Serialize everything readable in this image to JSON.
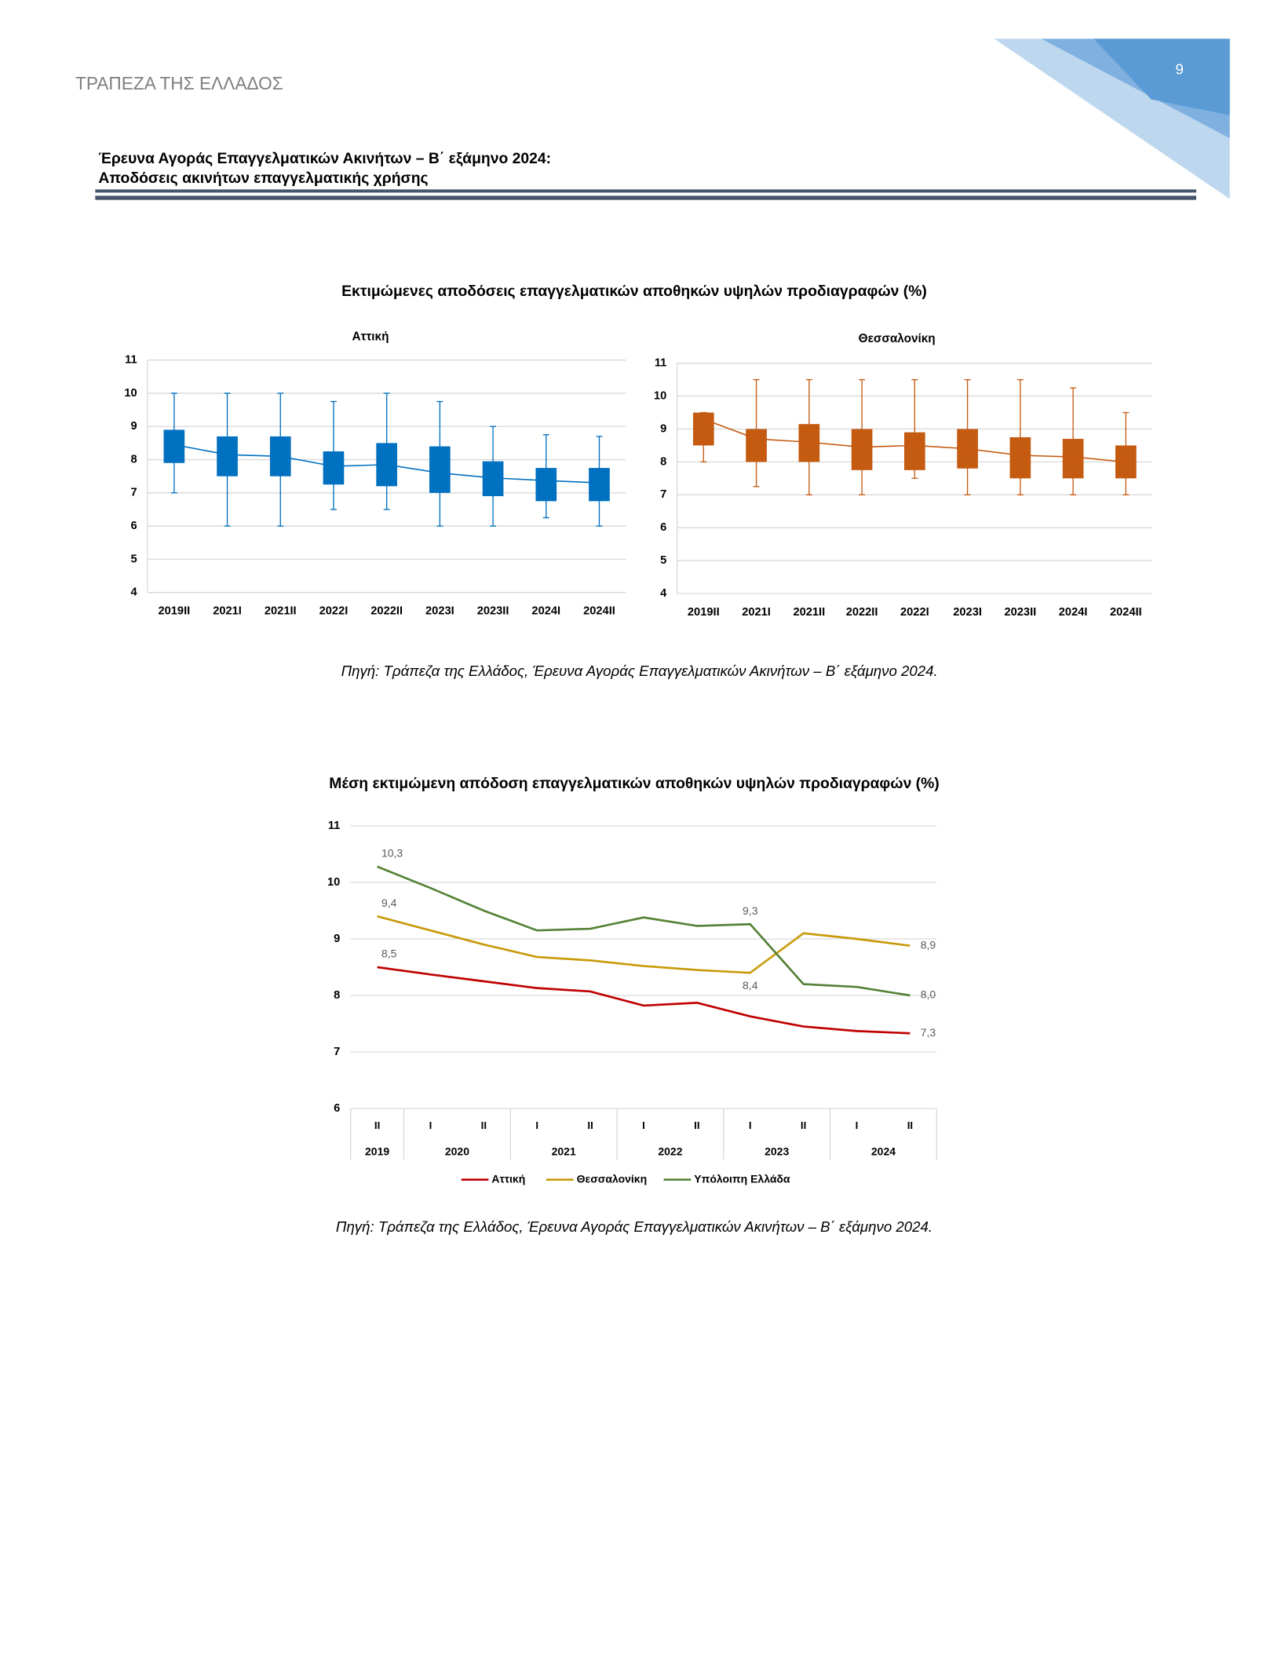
{
  "header": {
    "org": "ΤΡΑΠΕΖΑ ΤΗΣ ΕΛΛΑΔΟΣ",
    "page": "9",
    "title_line1": "Έρευνα Αγοράς Επαγγελματικών Ακινήτων – Β΄ εξάμηνο 2024:",
    "title_line2": "Αποδόσεις ακινήτων επαγγελματικής χρήσης"
  },
  "figure1": {
    "title": "Εκτιμώμενες αποδόσεις επαγγελματικών αποθηκών υψηλών προδιαγραφών (%)",
    "source": "Πηγή: Τράπεζα της Ελλάδος, Έρευνα Αγοράς Επαγγελματικών Ακινήτων – Β΄ εξάμηνο 2024."
  },
  "figure2": {
    "title": "Μέση εκτιμώμενη απόδοση επαγγελματικών αποθηκών υψηλών προδιαγραφών (%)",
    "source": "Πηγή: Τράπεζα της Ελλάδος, Έρευνα Αγοράς Επαγγελματικών Ακινήτων – Β΄ εξάμηνο 2024."
  },
  "chart_data": [
    {
      "type": "box",
      "title": "Αττική",
      "color": "#0070c0",
      "categories": [
        "2019II",
        "2021I",
        "2021II",
        "2022I",
        "2022II",
        "2023I",
        "2023II",
        "2024I",
        "2024II"
      ],
      "min": [
        7,
        6,
        6,
        6.5,
        6.5,
        6,
        6,
        6.25,
        6
      ],
      "q1": [
        7.9,
        7.5,
        7.5,
        7.25,
        7.2,
        7.0,
        6.9,
        6.75,
        6.75
      ],
      "q3": [
        8.9,
        8.7,
        8.7,
        8.25,
        8.5,
        8.4,
        7.95,
        7.75,
        7.75
      ],
      "max": [
        10,
        10,
        10,
        9.75,
        10,
        9.75,
        9,
        8.75,
        8.7
      ],
      "mean": [
        8.45,
        8.15,
        8.1,
        7.8,
        7.85,
        7.6,
        7.45,
        7.37,
        7.3
      ],
      "ylim": [
        4,
        11
      ],
      "yticks": [
        4,
        5,
        6,
        7,
        8,
        9,
        10,
        11
      ],
      "grid": true
    },
    {
      "type": "box",
      "title": "Θεσσαλονίκη",
      "color": "#c55a11",
      "categories": [
        "2019II",
        "2021I",
        "2021II",
        "2022II",
        "2022I",
        "2023I",
        "2023II",
        "2024I",
        "2024II"
      ],
      "min": [
        8,
        7.25,
        7,
        7,
        7.5,
        7,
        7,
        7,
        7
      ],
      "q1": [
        8.5,
        8,
        8,
        7.75,
        7.75,
        7.8,
        7.5,
        7.5,
        7.5
      ],
      "q3": [
        9.5,
        9,
        9.15,
        9,
        8.9,
        9,
        8.75,
        8.7,
        8.5
      ],
      "max": [
        9.5,
        10.5,
        10.5,
        10.5,
        10.5,
        10.5,
        10.5,
        10.25,
        9.5
      ],
      "mean": [
        9.3,
        8.7,
        8.6,
        8.45,
        8.5,
        8.4,
        8.2,
        8.15,
        8.0
      ],
      "ylim": [
        4,
        11
      ],
      "yticks": [
        4,
        5,
        6,
        7,
        8,
        9,
        10,
        11
      ],
      "grid": true
    },
    {
      "type": "line",
      "categories": [
        "II",
        "I",
        "II",
        "I",
        "II",
        "I",
        "II",
        "I",
        "II",
        "I",
        "II"
      ],
      "groups": [
        {
          "label": "2019",
          "count": 1
        },
        {
          "label": "2020",
          "count": 2
        },
        {
          "label": "2021",
          "count": 2
        },
        {
          "label": "2022",
          "count": 2
        },
        {
          "label": "2023",
          "count": 2
        },
        {
          "label": "2024",
          "count": 2
        }
      ],
      "series": [
        {
          "name": "Αττική",
          "color": "#c00000",
          "values": [
            8.5,
            8.37,
            8.25,
            8.13,
            8.07,
            7.82,
            7.87,
            7.63,
            7.45,
            7.37,
            7.33
          ],
          "value_labels": [
            "8,5",
            null,
            null,
            null,
            null,
            null,
            null,
            null,
            null,
            null,
            "7,3"
          ]
        },
        {
          "name": "Θεσσαλονίκη",
          "color": "#c89a0a",
          "values": [
            9.4,
            9.15,
            8.9,
            8.68,
            8.62,
            8.52,
            8.45,
            8.4,
            9.1,
            9.0,
            8.88
          ],
          "value_labels": [
            "9,4",
            null,
            null,
            null,
            null,
            null,
            null,
            "8,4",
            null,
            null,
            "8,9"
          ]
        },
        {
          "name": "Υπόλοιπη Ελλάδα",
          "color": "#548235",
          "values": [
            10.28,
            9.9,
            9.5,
            9.15,
            9.18,
            9.38,
            9.23,
            9.26,
            8.2,
            8.15,
            8.0
          ],
          "value_labels": [
            "10,3",
            null,
            null,
            null,
            null,
            null,
            null,
            "9,3",
            null,
            null,
            "8,0"
          ]
        }
      ],
      "ylim": [
        6,
        11
      ],
      "yticks": [
        6,
        7,
        8,
        9,
        10,
        11
      ],
      "grid": true,
      "legend": "bottom"
    }
  ]
}
